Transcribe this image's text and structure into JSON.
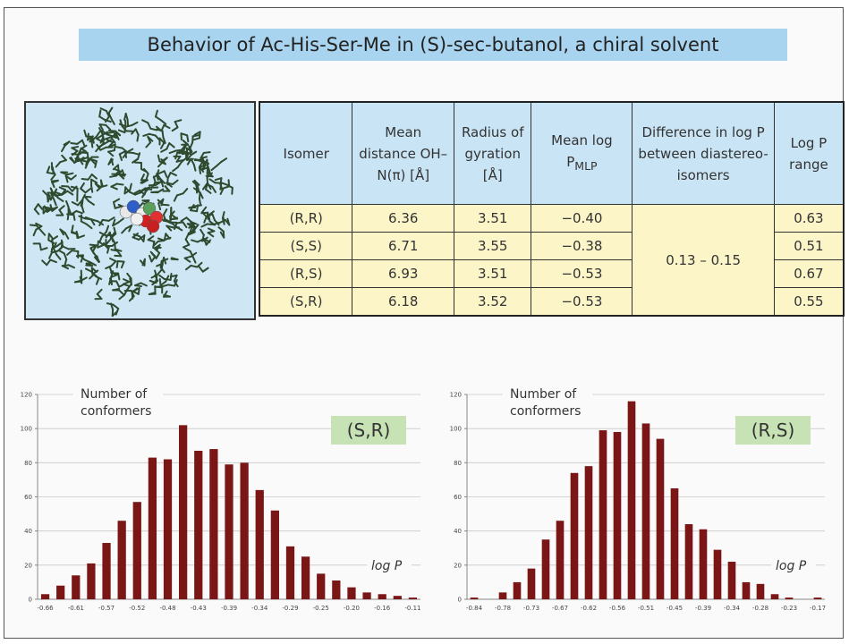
{
  "title": "Behavior of Ac-His-Ser-Me in (S)-sec-butanol, a chiral solvent",
  "table": {
    "header": [
      "Isomer",
      "Mean distance OH–N(π) [Å]",
      "Radius of gyration [Å]",
      {
        "text": "Mean log P",
        "subscript": "MLP"
      },
      "Difference in log P between diastereo-isomers",
      "Log P range"
    ],
    "rows": [
      [
        "(R,R)",
        "6.36",
        "3.51",
        "−0.40",
        "0.63"
      ],
      [
        "(S,S)",
        "6.71",
        "3.55",
        "−0.38",
        "0.51"
      ],
      [
        "(R,S)",
        "6.93",
        "3.51",
        "−0.53",
        "0.67"
      ],
      [
        "(S,R)",
        "6.18",
        "3.52",
        "−0.53",
        "0.55"
      ]
    ],
    "difference": "0.13 – 0.15"
  },
  "chart_data": [
    {
      "type": "bar",
      "label": "(S,R)",
      "y_label": [
        "Number of",
        "conformers"
      ],
      "x_label": "log P",
      "color": "#7a1616",
      "categories": [
        "-0.66",
        null,
        "-0.61",
        null,
        "-0.57",
        null,
        "-0.52",
        null,
        "-0.48",
        null,
        "-0.43",
        null,
        "-0.39",
        null,
        "-0.34",
        null,
        "-0.29",
        null,
        "-0.25",
        null,
        "-0.20",
        null,
        "-0.16",
        null,
        "-0.11"
      ],
      "values": [
        3,
        8,
        14,
        21,
        33,
        46,
        57,
        83,
        82,
        102,
        87,
        88,
        79,
        80,
        64,
        52,
        31,
        25,
        15,
        11,
        7,
        4,
        3,
        2,
        1
      ],
      "ylim": [
        0,
        120
      ],
      "yticks": [
        0,
        20,
        40,
        60,
        80,
        100,
        120
      ],
      "grid": true
    },
    {
      "type": "bar",
      "label": "(R,S)",
      "y_label": [
        "Number of",
        "conformers"
      ],
      "x_label": "log P",
      "color": "#7a1616",
      "categories": [
        "-0.84",
        null,
        "-0.78",
        null,
        "-0.73",
        null,
        "-0.67",
        null,
        "-0.62",
        null,
        "-0.56",
        null,
        "-0.51",
        null,
        "-0.45",
        null,
        "-0.39",
        null,
        "-0.34",
        null,
        "-0.28",
        null,
        "-0.23",
        null,
        "-0.17"
      ],
      "values": [
        1,
        0,
        4,
        10,
        18,
        35,
        46,
        74,
        78,
        99,
        98,
        116,
        103,
        94,
        65,
        44,
        41,
        29,
        22,
        10,
        9,
        3,
        1,
        0,
        1
      ],
      "ylim": [
        0,
        120
      ],
      "yticks": [
        0,
        20,
        40,
        60,
        80,
        100,
        120
      ],
      "grid": true
    }
  ]
}
